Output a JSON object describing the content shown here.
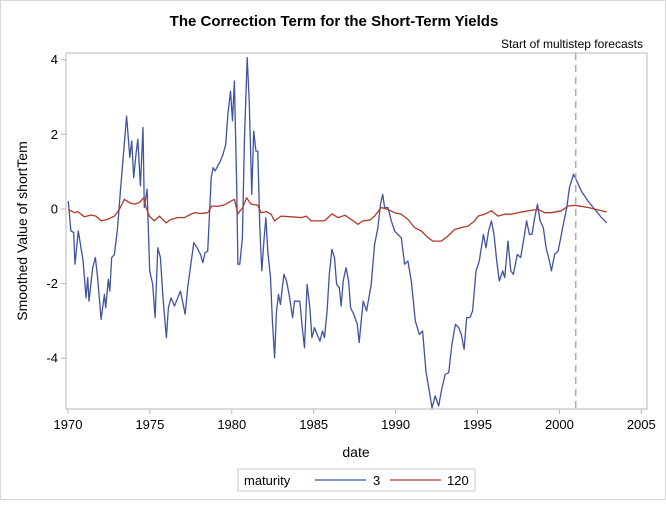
{
  "chart_data": {
    "type": "line",
    "title": "The Correction Term for the Short-Term Yields",
    "xlabel": "date",
    "ylabel": "Smoothed Value of shortTem",
    "xlim": [
      1970,
      2005
    ],
    "ylim": [
      -5.36,
      4.18
    ],
    "x_ticks": [
      "1970",
      "1975",
      "1980",
      "1985",
      "1990",
      "1995",
      "2000",
      "2005"
    ],
    "y_ticks": [
      "4",
      "2",
      "0",
      "-2",
      "-4"
    ],
    "grid": false,
    "reference_line": {
      "x": 2001.0,
      "label": "Start of multistep forecasts",
      "style": "dashed",
      "color": "#a0a0a0"
    },
    "legend": {
      "title": "maturity",
      "placement": "bottom"
    },
    "series": [
      {
        "name": "3",
        "color": "#3f53a0",
        "points": [
          [
            1970.02,
            0.21
          ],
          [
            1970.18,
            -0.59
          ],
          [
            1970.35,
            -0.63
          ],
          [
            1970.43,
            -1.48
          ],
          [
            1970.63,
            -0.59
          ],
          [
            1970.92,
            -1.39
          ],
          [
            1971.1,
            -2.38
          ],
          [
            1971.2,
            -1.84
          ],
          [
            1971.28,
            -2.47
          ],
          [
            1971.51,
            -1.57
          ],
          [
            1971.67,
            -1.3
          ],
          [
            1971.81,
            -1.84
          ],
          [
            1972.02,
            -2.96
          ],
          [
            1972.22,
            -2.29
          ],
          [
            1972.3,
            -2.65
          ],
          [
            1972.46,
            -1.89
          ],
          [
            1972.55,
            -2.2
          ],
          [
            1972.67,
            -1.3
          ],
          [
            1972.83,
            -1.22
          ],
          [
            1973.03,
            -0.5
          ],
          [
            1973.2,
            0.48
          ],
          [
            1973.4,
            1.55
          ],
          [
            1973.58,
            2.49
          ],
          [
            1973.77,
            1.38
          ],
          [
            1973.89,
            1.82
          ],
          [
            1974.01,
            0.84
          ],
          [
            1974.15,
            1.47
          ],
          [
            1974.26,
            1.87
          ],
          [
            1974.42,
            0.62
          ],
          [
            1974.58,
            2.18
          ],
          [
            1974.66,
            0.04
          ],
          [
            1974.83,
            0.53
          ],
          [
            1974.99,
            -1.66
          ],
          [
            1975.17,
            -2.02
          ],
          [
            1975.32,
            -2.91
          ],
          [
            1975.48,
            -1.04
          ],
          [
            1975.64,
            -1.3
          ],
          [
            1975.8,
            -2.38
          ],
          [
            1976.01,
            -3.45
          ],
          [
            1976.13,
            -2.65
          ],
          [
            1976.29,
            -2.38
          ],
          [
            1976.5,
            -2.6
          ],
          [
            1976.7,
            -2.38
          ],
          [
            1976.86,
            -2.2
          ],
          [
            1977.03,
            -2.56
          ],
          [
            1977.15,
            -2.82
          ],
          [
            1977.31,
            -2.11
          ],
          [
            1977.47,
            -1.57
          ],
          [
            1977.68,
            -0.9
          ],
          [
            1977.88,
            -1.04
          ],
          [
            1978.09,
            -1.22
          ],
          [
            1978.23,
            -1.44
          ],
          [
            1978.37,
            -1.17
          ],
          [
            1978.53,
            -1.13
          ],
          [
            1978.64,
            -0.14
          ],
          [
            1978.74,
            0.84
          ],
          [
            1978.86,
            1.11
          ],
          [
            1978.98,
            1.02
          ],
          [
            1979.14,
            1.15
          ],
          [
            1979.31,
            1.29
          ],
          [
            1979.47,
            1.47
          ],
          [
            1979.63,
            1.73
          ],
          [
            1979.76,
            2.54
          ],
          [
            1979.92,
            3.16
          ],
          [
            1980.04,
            2.36
          ],
          [
            1980.16,
            3.43
          ],
          [
            1980.29,
            0.75
          ],
          [
            1980.37,
            -1.48
          ],
          [
            1980.49,
            -1.48
          ],
          [
            1980.65,
            -0.77
          ],
          [
            1980.77,
            1.82
          ],
          [
            1980.94,
            4.06
          ],
          [
            1981.06,
            2.9
          ],
          [
            1981.22,
            0.39
          ],
          [
            1981.34,
            2.09
          ],
          [
            1981.47,
            1.55
          ],
          [
            1981.59,
            1.55
          ],
          [
            1981.71,
            -0.5
          ],
          [
            1981.83,
            -1.66
          ],
          [
            1981.96,
            -0.86
          ],
          [
            1982.08,
            -0.23
          ],
          [
            1982.2,
            -1.13
          ],
          [
            1982.36,
            -1.84
          ],
          [
            1982.48,
            -3.0
          ],
          [
            1982.61,
            -3.99
          ],
          [
            1982.73,
            -2.73
          ],
          [
            1982.85,
            -2.29
          ],
          [
            1982.97,
            -2.56
          ],
          [
            1983.18,
            -1.75
          ],
          [
            1983.34,
            -1.93
          ],
          [
            1983.5,
            -2.29
          ],
          [
            1983.71,
            -2.91
          ],
          [
            1983.83,
            -2.47
          ],
          [
            1984.03,
            -2.47
          ],
          [
            1984.15,
            -2.47
          ],
          [
            1984.32,
            -3.27
          ],
          [
            1984.44,
            -3.72
          ],
          [
            1984.6,
            -2.02
          ],
          [
            1984.77,
            -2.65
          ],
          [
            1984.89,
            -3.45
          ],
          [
            1985.05,
            -3.18
          ],
          [
            1985.21,
            -3.36
          ],
          [
            1985.38,
            -3.54
          ],
          [
            1985.54,
            -3.27
          ],
          [
            1985.66,
            -3.45
          ],
          [
            1985.82,
            -2.73
          ],
          [
            1985.95,
            -1.75
          ],
          [
            1986.11,
            -1.08
          ],
          [
            1986.27,
            -1.3
          ],
          [
            1986.4,
            -2.02
          ],
          [
            1986.56,
            -2.11
          ],
          [
            1986.68,
            -2.6
          ],
          [
            1986.8,
            -1.93
          ],
          [
            1986.97,
            -1.57
          ],
          [
            1987.13,
            -1.93
          ],
          [
            1987.25,
            -2.65
          ],
          [
            1987.45,
            -2.82
          ],
          [
            1987.66,
            -3.09
          ],
          [
            1987.78,
            -3.58
          ],
          [
            1987.9,
            -3.0
          ],
          [
            1988.02,
            -2.47
          ],
          [
            1988.23,
            -2.73
          ],
          [
            1988.51,
            -2.02
          ],
          [
            1988.72,
            -0.95
          ],
          [
            1988.92,
            -0.5
          ],
          [
            1989.08,
            0.13
          ],
          [
            1989.21,
            0.39
          ],
          [
            1989.33,
            0.04
          ],
          [
            1989.53,
            0.04
          ],
          [
            1989.74,
            -0.32
          ],
          [
            1989.94,
            -0.59
          ],
          [
            1990.14,
            -0.68
          ],
          [
            1990.35,
            -0.77
          ],
          [
            1990.55,
            -1.48
          ],
          [
            1990.75,
            -1.39
          ],
          [
            1990.96,
            -1.93
          ],
          [
            1991.2,
            -3.0
          ],
          [
            1991.45,
            -3.36
          ],
          [
            1991.65,
            -3.27
          ],
          [
            1991.85,
            -4.34
          ],
          [
            1992.06,
            -4.88
          ],
          [
            1992.22,
            -5.33
          ],
          [
            1992.42,
            -5.01
          ],
          [
            1992.63,
            -5.28
          ],
          [
            1992.79,
            -4.88
          ],
          [
            1993.03,
            -4.43
          ],
          [
            1993.24,
            -4.39
          ],
          [
            1993.44,
            -3.63
          ],
          [
            1993.65,
            -3.09
          ],
          [
            1993.85,
            -3.18
          ],
          [
            1994.01,
            -3.36
          ],
          [
            1994.18,
            -3.76
          ],
          [
            1994.34,
            -2.91
          ],
          [
            1994.54,
            -2.91
          ],
          [
            1994.7,
            -2.73
          ],
          [
            1994.91,
            -1.66
          ],
          [
            1995.11,
            -1.39
          ],
          [
            1995.36,
            -0.68
          ],
          [
            1995.52,
            -1.04
          ],
          [
            1995.68,
            -0.59
          ],
          [
            1995.85,
            -0.32
          ],
          [
            1996.01,
            -0.68
          ],
          [
            1996.17,
            -1.39
          ],
          [
            1996.33,
            -1.93
          ],
          [
            1996.54,
            -1.66
          ],
          [
            1996.66,
            -1.84
          ],
          [
            1996.86,
            -0.86
          ],
          [
            1997.03,
            -1.66
          ],
          [
            1997.19,
            -1.75
          ],
          [
            1997.43,
            -1.22
          ],
          [
            1997.64,
            -1.3
          ],
          [
            1997.84,
            -0.77
          ],
          [
            1998.0,
            -0.32
          ],
          [
            1998.17,
            -0.68
          ],
          [
            1998.33,
            -0.68
          ],
          [
            1998.49,
            -0.23
          ],
          [
            1998.66,
            0.13
          ],
          [
            1998.82,
            -0.32
          ],
          [
            1999.02,
            -0.5
          ],
          [
            1999.19,
            -1.04
          ],
          [
            1999.39,
            -1.39
          ],
          [
            1999.51,
            -1.66
          ],
          [
            1999.71,
            -1.22
          ],
          [
            1999.92,
            -1.13
          ],
          [
            2000.12,
            -0.68
          ],
          [
            2000.28,
            -0.32
          ],
          [
            2000.45,
            0.04
          ],
          [
            2000.61,
            0.57
          ],
          [
            2000.86,
            0.93
          ],
          [
            2001.06,
            0.75
          ],
          [
            2001.34,
            0.48
          ],
          [
            2001.75,
            0.21
          ],
          [
            2002.16,
            -0.01
          ],
          [
            2002.57,
            -0.23
          ],
          [
            2002.89,
            -0.37
          ]
        ]
      },
      {
        "name": "120",
        "color": "#b2382b",
        "points": [
          [
            1970.02,
            -0.01
          ],
          [
            1970.39,
            -0.1
          ],
          [
            1970.59,
            -0.07
          ],
          [
            1971.0,
            -0.21
          ],
          [
            1971.41,
            -0.16
          ],
          [
            1971.71,
            -0.19
          ],
          [
            1972.02,
            -0.32
          ],
          [
            1972.42,
            -0.28
          ],
          [
            1972.83,
            -0.19
          ],
          [
            1973.14,
            -0.01
          ],
          [
            1973.44,
            0.26
          ],
          [
            1973.75,
            0.17
          ],
          [
            1974.05,
            0.13
          ],
          [
            1974.36,
            0.17
          ],
          [
            1974.62,
            0.3
          ],
          [
            1974.77,
            0.04
          ],
          [
            1974.97,
            -0.19
          ],
          [
            1975.27,
            -0.32
          ],
          [
            1975.58,
            -0.19
          ],
          [
            1975.99,
            -0.37
          ],
          [
            1976.29,
            -0.28
          ],
          [
            1976.7,
            -0.23
          ],
          [
            1977.11,
            -0.23
          ],
          [
            1977.41,
            -0.16
          ],
          [
            1977.72,
            -0.1
          ],
          [
            1978.13,
            -0.12
          ],
          [
            1978.53,
            -0.1
          ],
          [
            1978.78,
            0.08
          ],
          [
            1979.14,
            0.07
          ],
          [
            1979.55,
            0.11
          ],
          [
            1979.96,
            0.21
          ],
          [
            1980.16,
            0.26
          ],
          [
            1980.37,
            -0.13
          ],
          [
            1980.67,
            0.04
          ],
          [
            1980.9,
            0.3
          ],
          [
            1981.18,
            0.13
          ],
          [
            1981.59,
            0.1
          ],
          [
            1981.79,
            -0.1
          ],
          [
            1982.1,
            -0.07
          ],
          [
            1982.4,
            -0.14
          ],
          [
            1982.61,
            -0.32
          ],
          [
            1983.01,
            -0.19
          ],
          [
            1983.63,
            -0.21
          ],
          [
            1984.24,
            -0.23
          ],
          [
            1984.54,
            -0.19
          ],
          [
            1984.85,
            -0.32
          ],
          [
            1985.25,
            -0.32
          ],
          [
            1985.66,
            -0.32
          ],
          [
            1985.87,
            -0.23
          ],
          [
            1986.11,
            -0.13
          ],
          [
            1986.48,
            -0.23
          ],
          [
            1986.92,
            -0.17
          ],
          [
            1987.29,
            -0.28
          ],
          [
            1987.7,
            -0.41
          ],
          [
            1988.0,
            -0.32
          ],
          [
            1988.41,
            -0.3
          ],
          [
            1988.72,
            -0.19
          ],
          [
            1989.12,
            0.04
          ],
          [
            1989.53,
            -0.01
          ],
          [
            1989.94,
            -0.1
          ],
          [
            1990.35,
            -0.14
          ],
          [
            1990.75,
            -0.28
          ],
          [
            1991.16,
            -0.5
          ],
          [
            1991.57,
            -0.59
          ],
          [
            1991.98,
            -0.77
          ],
          [
            1992.28,
            -0.86
          ],
          [
            1992.79,
            -0.86
          ],
          [
            1993.2,
            -0.72
          ],
          [
            1993.6,
            -0.55
          ],
          [
            1994.01,
            -0.5
          ],
          [
            1994.42,
            -0.46
          ],
          [
            1994.83,
            -0.32
          ],
          [
            1995.03,
            -0.19
          ],
          [
            1995.44,
            -0.14
          ],
          [
            1995.85,
            -0.05
          ],
          [
            1996.25,
            -0.19
          ],
          [
            1996.66,
            -0.14
          ],
          [
            1997.07,
            -0.14
          ],
          [
            1997.47,
            -0.1
          ],
          [
            1998.09,
            -0.05
          ],
          [
            1998.7,
            -0.01
          ],
          [
            1999.1,
            -0.1
          ],
          [
            1999.51,
            -0.1
          ],
          [
            2000.12,
            -0.05
          ],
          [
            2000.53,
            0.08
          ],
          [
            2000.94,
            0.1
          ],
          [
            2001.75,
            0.04
          ],
          [
            2002.89,
            -0.08
          ]
        ]
      }
    ]
  }
}
